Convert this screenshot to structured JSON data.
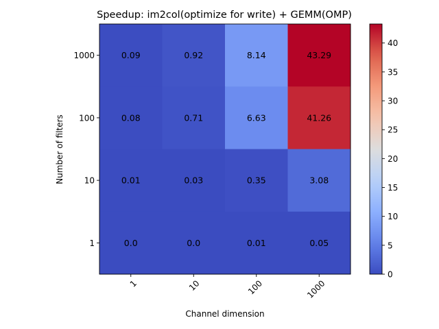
{
  "chart_data": {
    "type": "heatmap",
    "title": "Speedup: im2col(optimize for write) + GEMM(OMP)",
    "xlabel": "Channel dimension",
    "ylabel": "Number of filters",
    "x_categories": [
      "1",
      "10",
      "100",
      "1000"
    ],
    "y_categories": [
      "1000",
      "100",
      "10",
      "1"
    ],
    "values": [
      [
        0.09,
        0.92,
        8.14,
        43.29
      ],
      [
        0.08,
        0.71,
        6.63,
        41.26
      ],
      [
        0.01,
        0.03,
        0.35,
        3.08
      ],
      [
        0.0,
        0.0,
        0.01,
        0.05
      ]
    ],
    "value_labels": [
      [
        "0.09",
        "0.92",
        "8.14",
        "43.29"
      ],
      [
        "0.08",
        "0.71",
        "6.63",
        "41.26"
      ],
      [
        "0.01",
        "0.03",
        "0.35",
        "3.08"
      ],
      [
        "0.0",
        "0.0",
        "0.01",
        "0.05"
      ]
    ],
    "colormap": "coolwarm",
    "vmin": 0,
    "vmax": 43.29,
    "colorbar_ticks": [
      "0",
      "5",
      "10",
      "15",
      "20",
      "25",
      "30",
      "35",
      "40"
    ],
    "colorbar_tick_values": [
      0,
      5,
      10,
      15,
      20,
      25,
      30,
      35,
      40
    ],
    "grid": false,
    "legend": "colorbar right"
  }
}
